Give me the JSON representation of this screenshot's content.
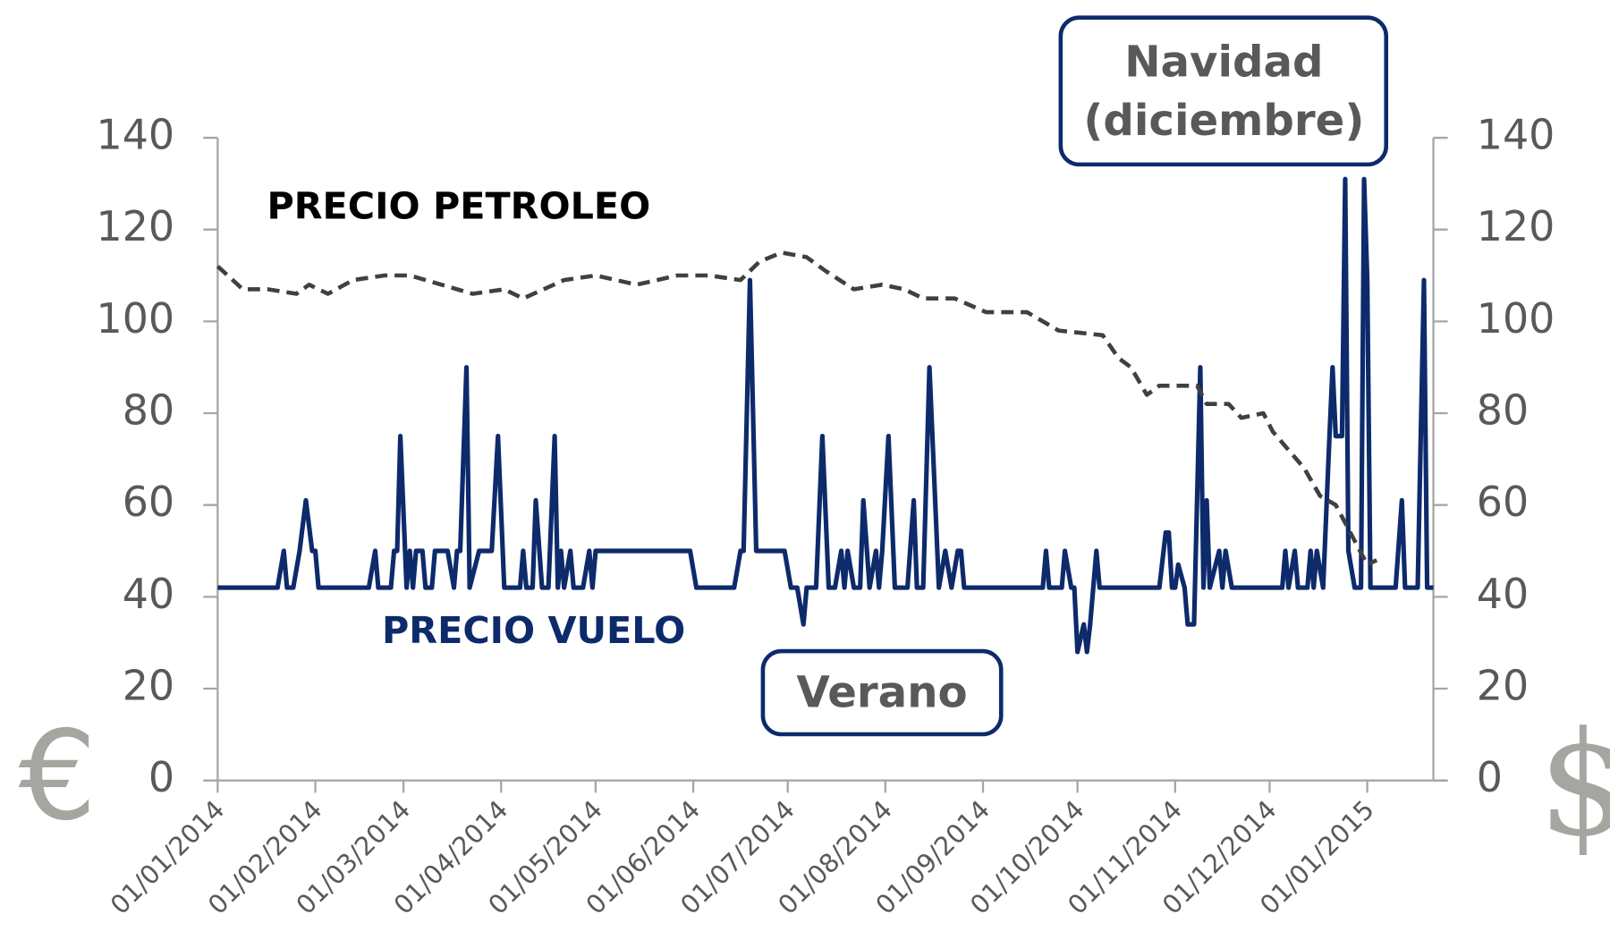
{
  "chart_data": {
    "type": "line",
    "y_label": "€",
    "y2_label": "$",
    "xlim": [
      "01/01/2014",
      "22/01/2015"
    ],
    "xticks": [
      "01/01/2014",
      "01/02/2014",
      "01/03/2014",
      "01/04/2014",
      "01/05/2014",
      "01/06/2014",
      "01/07/2014",
      "01/08/2014",
      "01/09/2014",
      "01/10/2014",
      "01/11/2014",
      "01/12/2014",
      "01/01/2015"
    ],
    "ylim": [
      0,
      140
    ],
    "yticks": [
      0,
      20,
      40,
      60,
      80,
      100,
      120,
      140
    ],
    "y2lim": [
      0,
      140
    ],
    "y2ticks": [
      0,
      20,
      40,
      60,
      80,
      100,
      120,
      140
    ],
    "annotations": [
      {
        "text": [
          "Navidad",
          "(diciembre)"
        ]
      },
      {
        "text": [
          "Verano"
        ]
      }
    ],
    "series": [
      {
        "name": "PRECIO VUELO",
        "color": "#0d2a6b",
        "axis": "y",
        "dashed": false,
        "x": [
          "01/01/2014",
          "20/01/2014",
          "22/01/2014",
          "23/01/2014",
          "25/01/2014",
          "27/01/2014",
          "29/01/2014",
          "31/01/2014",
          "01/02/2014",
          "02/02/2014",
          "18/02/2014",
          "20/02/2014",
          "21/02/2014",
          "25/02/2014",
          "26/02/2014",
          "27/02/2014",
          "28/02/2014",
          "02/03/2014",
          "03/03/2014",
          "04/03/2014",
          "05/03/2014",
          "07/03/2014",
          "08/03/2014",
          "10/03/2014",
          "11/03/2014",
          "15/03/2014",
          "17/03/2014",
          "18/03/2014",
          "19/03/2014",
          "21/03/2014",
          "22/03/2014",
          "25/03/2014",
          "29/03/2014",
          "31/03/2014",
          "02/04/2014",
          "07/04/2014",
          "08/04/2014",
          "09/04/2014",
          "11/04/2014",
          "12/04/2014",
          "14/04/2014",
          "16/04/2014",
          "18/04/2014",
          "19/04/2014",
          "20/04/2014",
          "21/04/2014",
          "23/04/2014",
          "24/04/2014",
          "27/04/2014",
          "29/04/2014",
          "30/04/2014",
          "01/05/2014",
          "07/05/2014",
          "31/05/2014",
          "02/06/2014",
          "14/06/2014",
          "16/06/2014",
          "17/06/2014",
          "19/06/2014",
          "21/06/2014",
          "30/06/2014",
          "02/07/2014",
          "04/07/2014",
          "06/07/2014",
          "07/07/2014",
          "10/07/2014",
          "12/07/2014",
          "14/07/2014",
          "16/07/2014",
          "18/07/2014",
          "19/07/2014",
          "20/07/2014",
          "22/07/2014",
          "24/07/2014",
          "25/07/2014",
          "27/07/2014",
          "29/07/2014",
          "30/07/2014",
          "31/07/2014",
          "02/08/2014",
          "04/08/2014",
          "08/08/2014",
          "10/08/2014",
          "11/08/2014",
          "13/08/2014",
          "15/08/2014",
          "18/08/2014",
          "20/08/2014",
          "22/08/2014",
          "24/08/2014",
          "25/08/2014",
          "26/08/2014",
          "20/09/2014",
          "21/09/2014",
          "22/09/2014",
          "26/09/2014",
          "27/09/2014",
          "29/09/2014",
          "30/09/2014",
          "01/10/2014",
          "03/10/2014",
          "04/10/2014",
          "05/10/2014",
          "07/10/2014",
          "08/10/2014",
          "27/10/2014",
          "29/10/2014",
          "30/10/2014",
          "31/10/2014",
          "01/11/2014",
          "02/11/2014",
          "04/11/2014",
          "05/11/2014",
          "07/11/2014",
          "09/11/2014",
          "10/11/2014",
          "11/11/2014",
          "12/11/2014",
          "15/11/2014",
          "16/11/2014",
          "17/11/2014",
          "19/11/2014",
          "05/12/2014",
          "06/12/2014",
          "07/12/2014",
          "09/12/2014",
          "10/12/2014",
          "13/12/2014",
          "14/12/2014",
          "15/12/2014",
          "16/12/2014",
          "18/12/2014",
          "20/12/2014",
          "21/12/2014",
          "22/12/2014",
          "24/12/2014",
          "25/12/2014",
          "26/12/2014",
          "28/12/2014",
          "30/12/2014",
          "31/12/2014",
          "01/01/2015",
          "02/01/2015",
          "10/01/2015",
          "12/01/2015",
          "13/01/2015",
          "17/01/2015",
          "19/01/2015",
          "20/01/2015",
          "22/01/2015"
        ],
        "values": [
          42,
          42,
          50,
          42,
          42,
          50,
          61,
          50,
          50,
          42,
          42,
          50,
          42,
          42,
          50,
          50,
          75,
          42,
          50,
          42,
          50,
          50,
          42,
          42,
          50,
          50,
          42,
          50,
          50,
          90,
          42,
          50,
          50,
          75,
          42,
          42,
          50,
          42,
          42,
          61,
          42,
          42,
          75,
          42,
          50,
          42,
          50,
          42,
          42,
          50,
          42,
          50,
          50,
          50,
          42,
          42,
          50,
          50,
          109,
          50,
          50,
          42,
          42,
          34,
          42,
          42,
          75,
          42,
          42,
          50,
          42,
          50,
          42,
          42,
          61,
          42,
          50,
          42,
          50,
          75,
          42,
          42,
          61,
          42,
          42,
          90,
          42,
          50,
          42,
          50,
          50,
          42,
          42,
          50,
          42,
          42,
          50,
          42,
          42,
          28,
          34,
          28,
          34,
          50,
          42,
          42,
          54,
          54,
          42,
          42,
          47,
          42,
          34,
          34,
          90,
          42,
          61,
          42,
          50,
          42,
          50,
          42,
          42,
          50,
          42,
          50,
          42,
          42,
          50,
          42,
          50,
          42,
          75,
          90,
          75,
          75,
          131,
          50,
          42,
          42,
          131,
          109,
          42,
          42,
          61,
          42,
          42,
          109,
          42,
          42
        ]
      },
      {
        "name": "PRECIO PETROLEO",
        "color": "#404040",
        "axis": "y2",
        "dashed": true,
        "x": [
          "01/01/2014",
          "09/01/2014",
          "17/01/2014",
          "26/01/2014",
          "30/01/2014",
          "05/02/2014",
          "13/02/2014",
          "23/02/2014",
          "03/03/2014",
          "13/03/2014",
          "23/03/2014",
          "02/04/2014",
          "08/04/2014",
          "21/04/2014",
          "01/05/2014",
          "14/05/2014",
          "27/05/2014",
          "06/06/2014",
          "16/06/2014",
          "19/06/2014",
          "22/06/2014",
          "29/06/2014",
          "07/07/2014",
          "13/07/2014",
          "22/07/2014",
          "31/07/2014",
          "07/08/2014",
          "13/08/2014",
          "23/08/2014",
          "02/09/2014",
          "15/09/2014",
          "25/09/2014",
          "09/10/2014",
          "14/10/2014",
          "18/10/2014",
          "23/10/2014",
          "27/10/2014",
          "08/11/2014",
          "11/11/2014",
          "18/11/2014",
          "22/11/2014",
          "29/11/2014",
          "02/12/2014",
          "07/12/2014",
          "12/12/2014",
          "17/12/2014",
          "22/12/2014",
          "01/01/2015",
          "04/01/2015"
        ],
        "values": [
          112,
          107,
          107,
          106,
          108,
          106,
          109,
          110,
          110,
          108,
          106,
          107,
          105,
          109,
          110,
          108,
          110,
          110,
          109,
          111,
          113,
          115,
          114,
          111,
          107,
          108,
          107,
          105,
          105,
          102,
          102,
          98,
          97,
          92,
          90,
          84,
          86,
          86,
          82,
          82,
          79,
          80,
          76,
          72,
          68,
          62,
          60,
          47,
          48
        ]
      }
    ]
  }
}
